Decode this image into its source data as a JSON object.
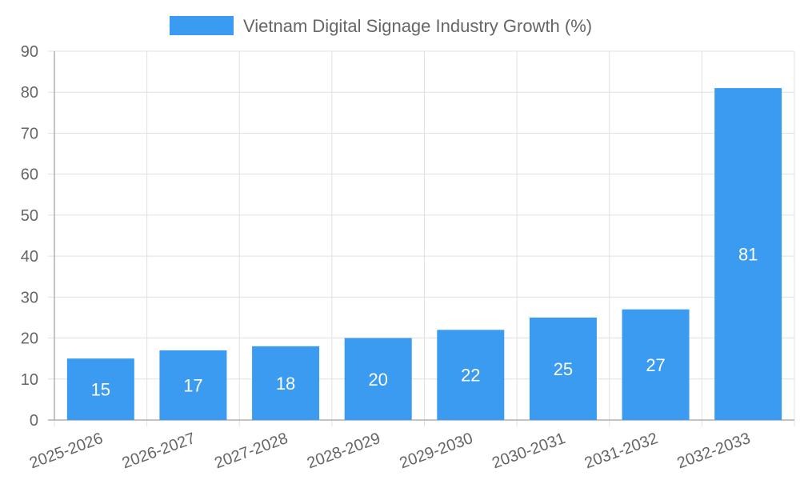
{
  "chart_data": {
    "type": "bar",
    "categories": [
      "2025-2026",
      "2026-2027",
      "2027-2028",
      "2028-2029",
      "2029-2030",
      "2030-2031",
      "2031-2032",
      "2032-2033"
    ],
    "series": [
      {
        "name": "Vietnam Digital Signage Industry Growth (%)",
        "values": [
          15,
          17,
          18,
          20,
          22,
          25,
          27,
          81
        ]
      }
    ],
    "ylim": [
      0,
      90
    ],
    "yticks": [
      0,
      10,
      20,
      30,
      40,
      50,
      60,
      70,
      80,
      90
    ],
    "grid": true,
    "legend_position": "top",
    "colors": {
      "bar": "#3a9bf0",
      "grid": "#e0e0e0",
      "axis": "#b0b0b0",
      "text": "#666666",
      "data_label": "#ffffff"
    }
  }
}
